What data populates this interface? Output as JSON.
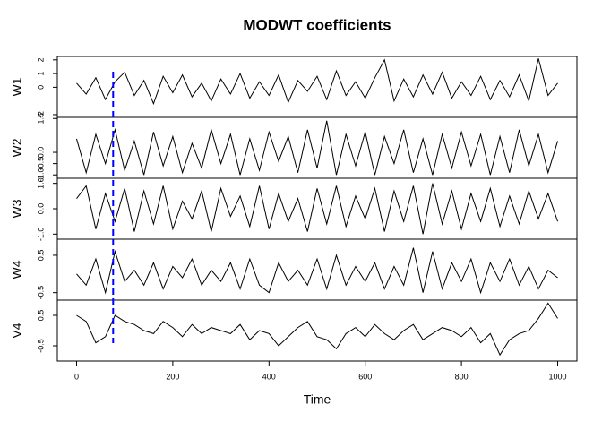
{
  "chart_data": {
    "type": "line",
    "title": "MODWT coefficients",
    "xlabel": "Time",
    "x": [
      0,
      20,
      40,
      60,
      80,
      100,
      120,
      140,
      160,
      180,
      200,
      220,
      240,
      260,
      280,
      300,
      320,
      340,
      360,
      380,
      400,
      420,
      440,
      460,
      480,
      500,
      520,
      540,
      560,
      580,
      600,
      620,
      640,
      660,
      680,
      700,
      720,
      740,
      760,
      780,
      800,
      820,
      840,
      860,
      880,
      900,
      920,
      940,
      960,
      980,
      1000
    ],
    "xlim": [
      -40,
      1040
    ],
    "xticks": [
      0,
      200,
      400,
      600,
      800,
      1000
    ],
    "vline": 76,
    "vline_color": "#0000ff",
    "series": [
      {
        "name": "W1",
        "color": "#000000",
        "ylim": [
          -2.2,
          2.25
        ],
        "yticks": [
          -2,
          0,
          1,
          2
        ],
        "values": [
          0.3,
          -0.5,
          0.7,
          -0.9,
          0.4,
          1.1,
          -0.6,
          0.5,
          -1.2,
          0.8,
          -0.4,
          0.9,
          -0.7,
          0.3,
          -1.0,
          0.6,
          -0.5,
          1.0,
          -0.8,
          0.4,
          -0.6,
          0.9,
          -1.1,
          0.5,
          -0.3,
          0.8,
          -0.9,
          1.2,
          -0.6,
          0.4,
          -0.8,
          0.7,
          2.0,
          -1.0,
          0.6,
          -0.7,
          0.9,
          -0.5,
          1.1,
          -0.8,
          0.4,
          -0.6,
          0.8,
          -0.9,
          0.5,
          -0.7,
          0.9,
          -1.0,
          2.1,
          -0.6,
          0.3
        ]
      },
      {
        "name": "W2",
        "color": "#000000",
        "ylim": [
          -1.15,
          1.55
        ],
        "yticks": [
          {
            "value": -1,
            "label": "-1.0"
          },
          -0.5,
          {
            "value": 0,
            "label": "0.0"
          },
          {
            "value": 1.5,
            "label": "1.5"
          }
        ],
        "values": [
          0.6,
          -0.9,
          0.8,
          -0.5,
          1.0,
          -0.8,
          0.5,
          -1.0,
          0.9,
          -0.6,
          0.7,
          -0.9,
          0.4,
          -0.7,
          1.0,
          -0.5,
          0.8,
          -1.0,
          0.6,
          -0.8,
          0.9,
          -0.4,
          0.7,
          -0.9,
          1.0,
          -0.7,
          1.4,
          -1.0,
          0.8,
          -0.6,
          0.9,
          -1.0,
          0.7,
          -0.5,
          1.0,
          -0.9,
          0.6,
          -1.0,
          0.8,
          -0.7,
          0.9,
          -0.6,
          0.8,
          -1.0,
          0.7,
          -0.9,
          1.0,
          -0.6,
          0.8,
          -0.9,
          0.5
        ]
      },
      {
        "name": "W3",
        "color": "#000000",
        "ylim": [
          -1.2,
          1.2
        ],
        "yticks": [
          {
            "value": -1,
            "label": "-1.0"
          },
          {
            "value": 0,
            "label": "0.0"
          },
          {
            "value": 1,
            "label": "1.0"
          }
        ],
        "values": [
          0.4,
          0.9,
          -0.8,
          0.6,
          -0.5,
          0.8,
          -0.9,
          0.7,
          -0.6,
          0.9,
          -0.8,
          0.3,
          -0.4,
          0.7,
          -0.9,
          0.8,
          -0.3,
          0.5,
          -0.7,
          0.9,
          -0.8,
          0.6,
          -0.5,
          0.4,
          -0.9,
          0.8,
          -0.6,
          0.9,
          -0.7,
          0.5,
          -0.4,
          0.8,
          -0.9,
          0.7,
          -0.5,
          0.9,
          -1.0,
          1.0,
          -0.6,
          0.7,
          -0.8,
          0.6,
          -0.5,
          0.8,
          -0.7,
          0.5,
          -0.6,
          0.7,
          -0.4,
          0.6,
          -0.5
        ]
      },
      {
        "name": "W4",
        "color": "#000000",
        "ylim": [
          -0.7,
          0.93
        ],
        "yticks": [
          -0.5,
          0.5
        ],
        "values": [
          0.0,
          -0.3,
          0.4,
          -0.5,
          0.6,
          -0.2,
          0.1,
          -0.3,
          0.3,
          -0.4,
          0.2,
          -0.1,
          0.4,
          -0.3,
          0.1,
          -0.2,
          0.3,
          -0.4,
          0.4,
          -0.3,
          -0.5,
          0.3,
          -0.2,
          0.1,
          -0.3,
          0.4,
          -0.4,
          0.5,
          -0.3,
          0.2,
          -0.2,
          0.3,
          -0.4,
          0.2,
          -0.3,
          0.7,
          -0.5,
          0.6,
          -0.4,
          0.3,
          -0.2,
          0.4,
          -0.5,
          0.3,
          -0.2,
          0.4,
          -0.3,
          0.2,
          -0.4,
          0.1,
          -0.1
        ]
      },
      {
        "name": "V4",
        "color": "#000000",
        "ylim": [
          -1.0,
          1.0
        ],
        "yticks": [
          -0.5,
          0.5
        ],
        "values": [
          0.5,
          0.3,
          -0.4,
          -0.2,
          0.5,
          0.3,
          0.2,
          0.0,
          -0.1,
          0.3,
          0.1,
          -0.2,
          0.2,
          -0.1,
          0.1,
          0.0,
          -0.1,
          0.2,
          -0.3,
          0.0,
          -0.1,
          -0.5,
          -0.2,
          0.1,
          0.3,
          -0.2,
          -0.3,
          -0.6,
          -0.1,
          0.1,
          -0.2,
          0.2,
          -0.1,
          -0.3,
          0.0,
          0.2,
          -0.3,
          -0.1,
          0.1,
          0.0,
          -0.2,
          0.1,
          -0.4,
          -0.1,
          -0.8,
          -0.3,
          -0.1,
          0.0,
          0.4,
          0.9,
          0.4
        ]
      }
    ]
  }
}
